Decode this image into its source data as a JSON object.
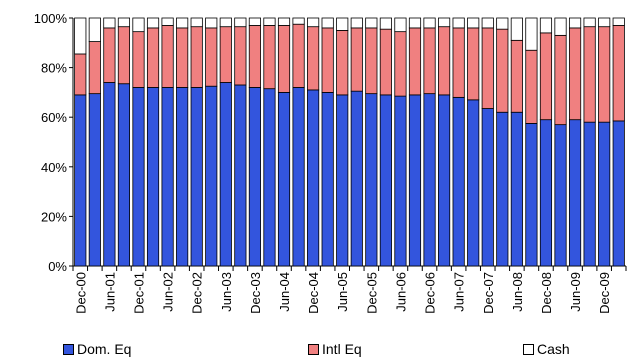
{
  "chart_data": {
    "type": "bar",
    "stacked": true,
    "percent_scale": true,
    "ylim": [
      0,
      100
    ],
    "y_tick_labels": [
      "0%",
      "20%",
      "40%",
      "60%",
      "80%",
      "100%"
    ],
    "x_tick_labels": [
      "Dec-00",
      "Jun-01",
      "Dec-01",
      "Jun-02",
      "Dec-02",
      "Jun-03",
      "Dec-03",
      "Jun-04",
      "Dec-04",
      "Jun-05",
      "Dec-05",
      "Jun-06",
      "Dec-06",
      "Jun-07",
      "Dec-07",
      "Jun-08",
      "Dec-08",
      "Jun-09",
      "Dec-09"
    ],
    "legend_position": "bottom",
    "series": [
      {
        "name": "Dom. Eq",
        "color": "#3355dd",
        "values": [
          69,
          69.5,
          74,
          73.5,
          72,
          72,
          72,
          72,
          72,
          72.5,
          74,
          73,
          72,
          71.5,
          70,
          72,
          71,
          70,
          69,
          70.5,
          69.5,
          69,
          68.5,
          69,
          69.5,
          69,
          68,
          67,
          63.5,
          62,
          62,
          57.5,
          59,
          57,
          59,
          58,
          58,
          58.5
        ]
      },
      {
        "name": "Intl Eq",
        "color": "#f08080",
        "values": [
          16.5,
          21,
          22,
          23,
          22.5,
          24,
          25,
          24,
          24.5,
          23.5,
          22.5,
          23.5,
          25,
          25.5,
          27,
          25.5,
          25.5,
          26,
          26,
          25.5,
          26.5,
          26.5,
          26,
          27,
          26.5,
          27.5,
          28,
          29,
          32.5,
          33.5,
          29,
          29.5,
          35,
          36,
          37,
          38.5,
          38.5,
          38.5
        ]
      },
      {
        "name": "Cash",
        "color": "#ffffff",
        "values": [
          14.5,
          9.5,
          4,
          3.5,
          5.5,
          4,
          3,
          4,
          3.5,
          4,
          3.5,
          3.5,
          3,
          3,
          3,
          2.5,
          3.5,
          4,
          5,
          4,
          4,
          4.5,
          5.5,
          4,
          4,
          3.5,
          4,
          4,
          4,
          4.5,
          9,
          13,
          6,
          7,
          4,
          3.5,
          3.5,
          3
        ]
      }
    ]
  }
}
